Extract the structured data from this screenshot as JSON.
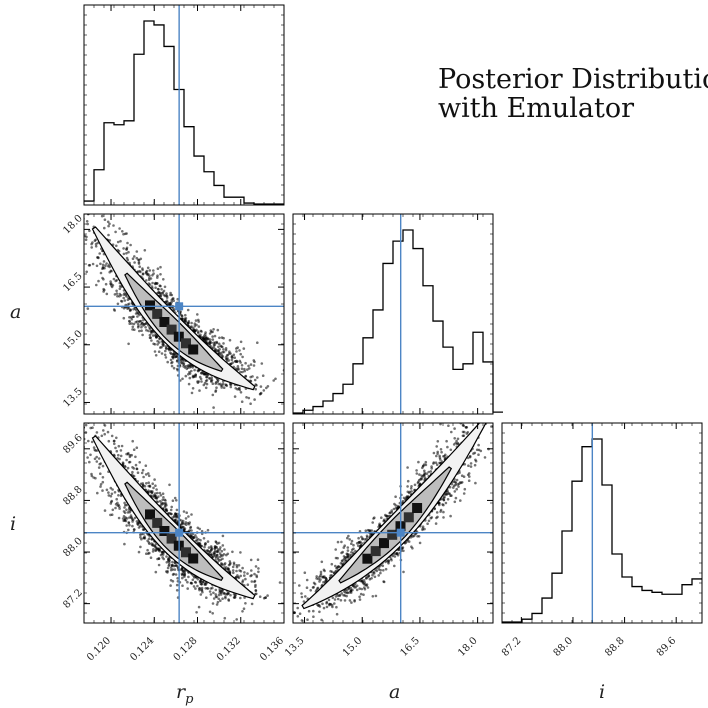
{
  "chart_data": {
    "type": "corner",
    "title_lines": [
      "Posterior Distribution",
      "with Emulator"
    ],
    "truth_color": "#4c85c5",
    "parameters": [
      {
        "key": "rp",
        "label": "r",
        "label_sub": "p",
        "range": [
          0.1175,
          0.136
        ],
        "ticks": [
          0.12,
          0.124,
          0.128,
          0.132,
          0.136
        ],
        "tick_labels": [
          "0.120",
          "0.124",
          "0.128",
          "0.132",
          "0.136"
        ],
        "truth": 0.1263,
        "hist_edges_start": 0.1175,
        "hist_bin_width": 0.000925,
        "hist_counts": [
          0.02,
          0.18,
          0.42,
          0.41,
          0.43,
          0.77,
          0.94,
          0.92,
          0.81,
          0.59,
          0.4,
          0.25,
          0.17,
          0.1,
          0.04,
          0.04,
          0.01,
          0.005,
          0.005,
          0.005
        ]
      },
      {
        "key": "a",
        "label": "a",
        "range": [
          13.2,
          18.4
        ],
        "ticks": [
          13.5,
          15.0,
          16.5,
          18.0
        ],
        "tick_labels": [
          "13.5",
          "15.0",
          "16.5",
          "18.0"
        ],
        "truth": 16.0,
        "hist_edges_start": 13.2,
        "hist_bin_width": 0.26,
        "hist_counts": [
          0.005,
          0.02,
          0.04,
          0.07,
          0.11,
          0.16,
          0.27,
          0.41,
          0.56,
          0.81,
          0.93,
          0.99,
          0.89,
          0.69,
          0.5,
          0.36,
          0.24,
          0.27,
          0.44,
          0.28,
          0.01
        ]
      },
      {
        "key": "i",
        "label": "i",
        "range": [
          86.9,
          90.0
        ],
        "ticks": [
          87.2,
          88.0,
          88.8,
          89.6
        ],
        "tick_labels": [
          "87.2",
          "88.0",
          "88.8",
          "89.6"
        ],
        "truth": 88.3,
        "hist_edges_start": 86.9,
        "hist_bin_width": 0.155,
        "hist_counts": [
          0.005,
          0.005,
          0.02,
          0.05,
          0.13,
          0.26,
          0.48,
          0.74,
          0.92,
          0.96,
          0.72,
          0.36,
          0.24,
          0.19,
          0.17,
          0.16,
          0.15,
          0.15,
          0.2,
          0.23
        ]
      }
    ],
    "pairs": [
      {
        "x": "rp",
        "y": "a",
        "center": [
          0.1263,
          16.0
        ],
        "relation": "negative",
        "mode": [
          0.1253,
          16.3
        ]
      },
      {
        "x": "rp",
        "y": "i",
        "center": [
          0.1263,
          88.3
        ],
        "relation": "negative",
        "mode": [
          0.1253,
          88.45
        ]
      },
      {
        "x": "a",
        "y": "i",
        "center": [
          16.0,
          88.3
        ],
        "relation": "positive",
        "mode": [
          15.9,
          88.3
        ]
      }
    ]
  }
}
